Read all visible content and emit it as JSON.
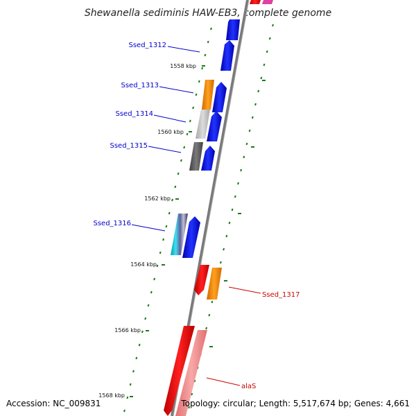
{
  "title": "Shewanella sediminis HAW-EB3, complete genome",
  "accession": "Accession: NC_009831",
  "topology": "Topology: circular; Length: 5,517,674 bp; Genes: 4,661",
  "ticks": [
    {
      "label": "1558 kbp"
    },
    {
      "label": "1560 kbp"
    },
    {
      "label": "1562 kbp"
    },
    {
      "label": "1564 kbp"
    },
    {
      "label": "1566 kbp"
    },
    {
      "label": "1568 kbp"
    }
  ],
  "gene_labels": [
    {
      "name": "Ssed_1312",
      "strand": "forward"
    },
    {
      "name": "Ssed_1313",
      "strand": "forward"
    },
    {
      "name": "Ssed_1314",
      "strand": "forward"
    },
    {
      "name": "Ssed_1315",
      "strand": "forward"
    },
    {
      "name": "Ssed_1316",
      "strand": "forward"
    },
    {
      "name": "Ssed_1317",
      "strand": "reverse"
    },
    {
      "name": "alaS",
      "strand": "reverse"
    }
  ],
  "colors": {
    "forward_gene": "#0000ee",
    "reverse_gene": "#ee0000",
    "orange": "#ff8c00",
    "light_gray": "#c8c8c8",
    "dark_gray": "#606060",
    "cyan": "#20c0d0",
    "pink": "#f08080",
    "magenta": "#e040a0",
    "backbone": "#808080",
    "tick_green": "#1a7a1a",
    "label_blue": "#0000cc",
    "label_red": "#cc0000"
  }
}
